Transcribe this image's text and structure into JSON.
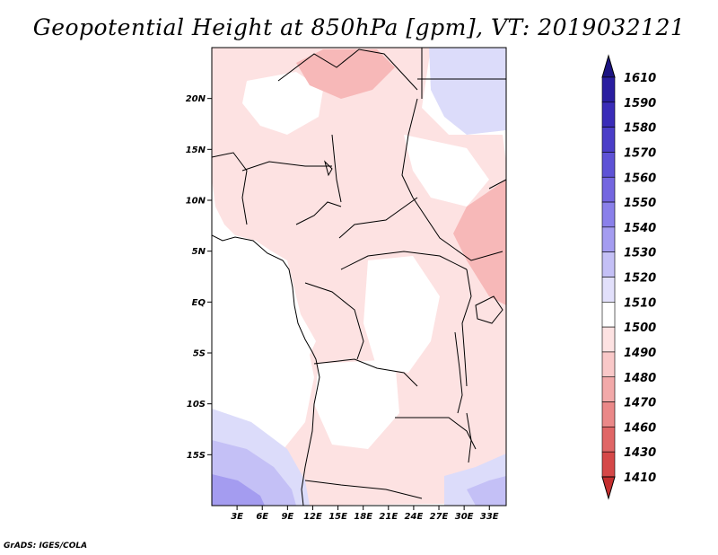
{
  "title": "Geopotential Height at 850hPa [gpm], VT: 2019032121",
  "credit": "GrADS: IGES/COLA",
  "map": {
    "lon_range": [
      0,
      35
    ],
    "lat_range": [
      -20,
      25
    ],
    "lat_ticks": [
      {
        "value": 20,
        "label": "20N"
      },
      {
        "value": 15,
        "label": "15N"
      },
      {
        "value": 10,
        "label": "10N"
      },
      {
        "value": 5,
        "label": "5N"
      },
      {
        "value": 0,
        "label": "EQ"
      },
      {
        "value": -5,
        "label": "5S"
      },
      {
        "value": -10,
        "label": "10S"
      },
      {
        "value": -15,
        "label": "15S"
      }
    ],
    "lon_ticks": [
      {
        "value": 3,
        "label": "3E"
      },
      {
        "value": 6,
        "label": "6E"
      },
      {
        "value": 9,
        "label": "9E"
      },
      {
        "value": 12,
        "label": "12E"
      },
      {
        "value": 15,
        "label": "15E"
      },
      {
        "value": 18,
        "label": "18E"
      },
      {
        "value": 21,
        "label": "21E"
      },
      {
        "value": 24,
        "label": "24E"
      },
      {
        "value": 27,
        "label": "27E"
      },
      {
        "value": 30,
        "label": "30E"
      },
      {
        "value": 33,
        "label": "33E"
      }
    ]
  },
  "colorbar": {
    "levels": [
      {
        "label": "1610",
        "color": "#1c1482"
      },
      {
        "label": "1590",
        "color": "#2a1ea0"
      },
      {
        "label": "1580",
        "color": "#3a2cb8"
      },
      {
        "label": "1570",
        "color": "#4b3ec8"
      },
      {
        "label": "1560",
        "color": "#5e52d6"
      },
      {
        "label": "1550",
        "color": "#7466e0"
      },
      {
        "label": "1540",
        "color": "#8a80ea"
      },
      {
        "label": "1530",
        "color": "#a49cf0"
      },
      {
        "label": "1520",
        "color": "#c4c0f6"
      },
      {
        "label": "1510",
        "color": "#e2e0fb"
      },
      {
        "label": "1500",
        "color": "#ffffff"
      },
      {
        "label": "1490",
        "color": "#fde2e2"
      },
      {
        "label": "1480",
        "color": "#f9c8c8"
      },
      {
        "label": "1470",
        "color": "#f2a9a9"
      },
      {
        "label": "1460",
        "color": "#ea8888"
      },
      {
        "label": "1430",
        "color": "#e06666"
      },
      {
        "label": "1410",
        "color": "#d54848"
      }
    ],
    "bottom_tip_color": "#c42e2e"
  },
  "regions": {
    "main_field_color": "#fde2e2",
    "warm_core_color": "#f7b8b8",
    "cool_light_color": "#dcdcfa",
    "cool_mid_color": "#c4c0f6",
    "cool_deep_color": "#a49cf0"
  }
}
